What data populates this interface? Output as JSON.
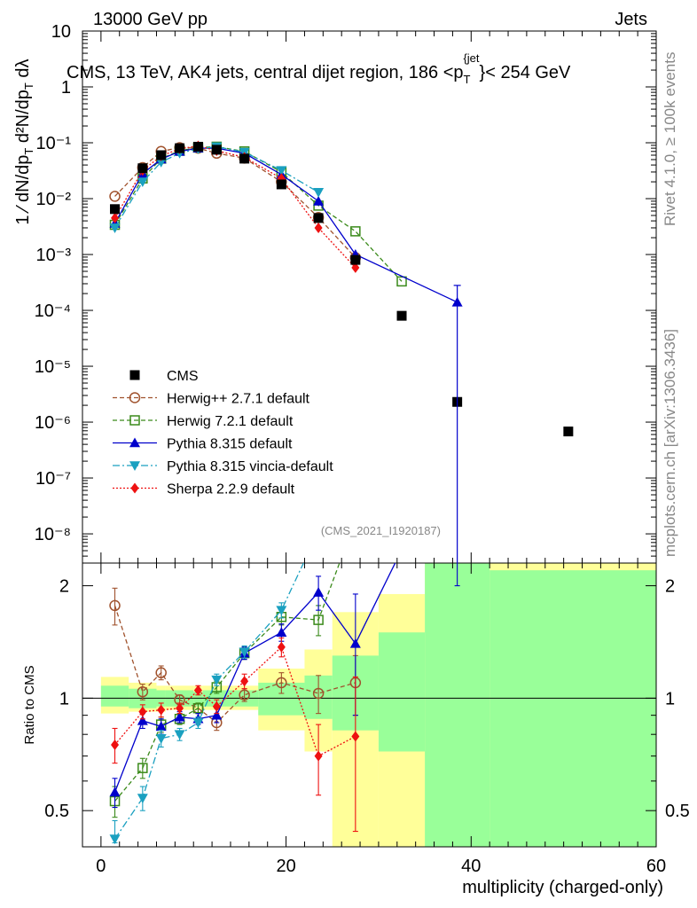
{
  "header": {
    "left": "13000 GeV pp",
    "right": "Jets"
  },
  "side_labels": {
    "rivet": "Rivet 4.1.0, ≥ 100k events",
    "mcplots": "mcplots.cern.ch [arXiv:1306.3436]"
  },
  "chart_data": {
    "type": "scatter",
    "title": "CMS, 13 TeV, AK4 jets, central dijet region, 186 < p_T^{jet} < 254 GeV",
    "title_parts": {
      "main": "CMS, 13 TeV, AK4 jets, central dijet region, 186 <p",
      "sub": "T",
      "sup": "{jet",
      "tail": "}< 254 GeV"
    },
    "analysis_id": "(CMS_2021_I1920187)",
    "xlabel": "multiplicity (charged-only)",
    "ylabel_main": "1/dN/dp_T  d²N/dp_T dλ",
    "ylabel_ratio": "Ratio to CMS",
    "xlim": [
      -2,
      60
    ],
    "ylim_main": [
      3e-09,
      10
    ],
    "ylim_ratio": [
      0.4,
      2.3
    ],
    "x_ticks": [
      "0",
      "20",
      "40",
      "60"
    ],
    "y_ticks_main": [
      "10",
      "1",
      "10⁻¹",
      "10⁻²",
      "10⁻³",
      "10⁻⁴",
      "10⁻⁵",
      "10⁻⁶",
      "10⁻⁷",
      "10⁻⁸"
    ],
    "y_ticks_ratio": [
      "2",
      "1",
      "0.5"
    ],
    "legend_position": "lower-left",
    "bin_edges": [
      0,
      3,
      6,
      7,
      10,
      11,
      14,
      17,
      22,
      25,
      30,
      35,
      42,
      60
    ],
    "band_inner": [
      1.08,
      1.06,
      1.05,
      1.05,
      1.04,
      1.05,
      1.05,
      1.1,
      1.15,
      1.3,
      1.5,
      2.3,
      2.2
    ],
    "band_inner_low": [
      0.95,
      0.94,
      0.95,
      0.95,
      0.95,
      0.95,
      0.95,
      0.9,
      0.88,
      0.82,
      0.72,
      0.38,
      0.38
    ],
    "band_outer": [
      1.14,
      1.1,
      1.08,
      1.08,
      1.08,
      1.08,
      1.08,
      1.2,
      1.35,
      1.7,
      1.9,
      2.3,
      2.3
    ],
    "band_outer_low": [
      0.91,
      0.92,
      0.92,
      0.93,
      0.93,
      0.93,
      0.93,
      0.82,
      0.72,
      0.38,
      0.38,
      0.38,
      0.38
    ],
    "series": [
      {
        "name": "CMS",
        "color": "#000000",
        "marker": "square-filled",
        "dash": "",
        "x": [
          1.5,
          4.5,
          6.5,
          8.5,
          10.5,
          12.5,
          15.5,
          19.5,
          23.5,
          27.5,
          32.5,
          38.5,
          50.5
        ],
        "y": [
          0.0065,
          0.035,
          0.06,
          0.08,
          0.085,
          0.075,
          0.052,
          0.018,
          0.0045,
          0.0008,
          8e-05,
          2.3e-06,
          6.8e-07
        ],
        "ratio": null
      },
      {
        "name": "Herwig++ 2.7.1 default",
        "color": "#a0522d",
        "marker": "circle-open",
        "dash": "5,3",
        "x": [
          1.5,
          4.5,
          6.5,
          8.5,
          10.5,
          12.5,
          15.5,
          19.5,
          23.5,
          27.5
        ],
        "y": [
          0.011,
          0.036,
          0.07,
          0.082,
          0.08,
          0.065,
          0.053,
          0.02,
          0.0046,
          0.00088
        ],
        "ratio": [
          1.77,
          1.04,
          1.17,
          0.99,
          0.94,
          0.86,
          1.02,
          1.1,
          1.03,
          1.1
        ],
        "ratio_err": [
          0.2,
          0.05,
          0.05,
          0.03,
          0.03,
          0.04,
          0.04,
          0.07,
          0.12,
          0.2
        ]
      },
      {
        "name": "Herwig 7.2.1 default",
        "color": "#3a8a1a",
        "marker": "square-open",
        "dash": "5,3",
        "x": [
          1.5,
          4.5,
          6.5,
          8.5,
          10.5,
          12.5,
          15.5,
          19.5,
          23.5,
          27.5,
          32.5
        ],
        "y": [
          0.0034,
          0.023,
          0.052,
          0.072,
          0.082,
          0.085,
          0.07,
          0.03,
          0.0075,
          0.0026,
          0.00033
        ],
        "ratio": [
          0.53,
          0.65,
          0.85,
          0.88,
          0.94,
          1.07,
          1.32,
          1.65,
          1.62,
          3.0,
          4.1
        ],
        "ratio_err": [
          0.05,
          0.04,
          0.04,
          0.03,
          0.03,
          0.04,
          0.05,
          0.08,
          0.15,
          0.3,
          0.6
        ]
      },
      {
        "name": "Pythia 8.315 default",
        "color": "#0000cc",
        "marker": "triangle-up",
        "dash": "",
        "x": [
          1.5,
          4.5,
          6.5,
          8.5,
          10.5,
          12.5,
          15.5,
          19.5,
          23.5,
          27.5,
          38.5
        ],
        "y": [
          0.0036,
          0.028,
          0.051,
          0.07,
          0.08,
          0.08,
          0.065,
          0.027,
          0.009,
          0.001,
          0.00014
        ],
        "ratio": [
          0.56,
          0.87,
          0.84,
          0.89,
          0.88,
          0.9,
          1.32,
          1.5,
          1.92,
          1.4,
          5.0
        ],
        "ratio_err": [
          0.05,
          0.04,
          0.04,
          0.03,
          0.03,
          0.04,
          0.05,
          0.08,
          0.2,
          0.5,
          3.0
        ]
      },
      {
        "name": "Pythia 8.315 vincia-default",
        "color": "#1aa0c0",
        "marker": "triangle-down",
        "dash": "8,3,2,3",
        "x": [
          1.5,
          4.5,
          6.5,
          8.5,
          10.5,
          12.5,
          15.5,
          19.5,
          23.5
        ],
        "y": [
          0.003,
          0.02,
          0.045,
          0.065,
          0.078,
          0.085,
          0.068,
          0.032,
          0.013
        ],
        "ratio": [
          0.42,
          0.54,
          0.78,
          0.8,
          0.86,
          1.12,
          1.33,
          1.72,
          2.8
        ],
        "ratio_err": [
          0.05,
          0.04,
          0.04,
          0.03,
          0.03,
          0.04,
          0.05,
          0.08,
          0.2
        ]
      },
      {
        "name": "Sherpa 2.2.9 default",
        "color": "#ee1111",
        "marker": "diamond",
        "dash": "2,2",
        "x": [
          1.5,
          4.5,
          6.5,
          8.5,
          10.5,
          12.5,
          15.5,
          19.5,
          23.5,
          27.5
        ],
        "y": [
          0.0045,
          0.032,
          0.058,
          0.078,
          0.088,
          0.072,
          0.055,
          0.023,
          0.003,
          0.00058
        ],
        "ratio": [
          0.75,
          0.92,
          0.93,
          0.94,
          1.05,
          0.95,
          1.11,
          1.37,
          0.7,
          0.79
        ],
        "ratio_err": [
          0.08,
          0.04,
          0.04,
          0.03,
          0.03,
          0.04,
          0.05,
          0.08,
          0.15,
          0.35
        ]
      }
    ]
  }
}
